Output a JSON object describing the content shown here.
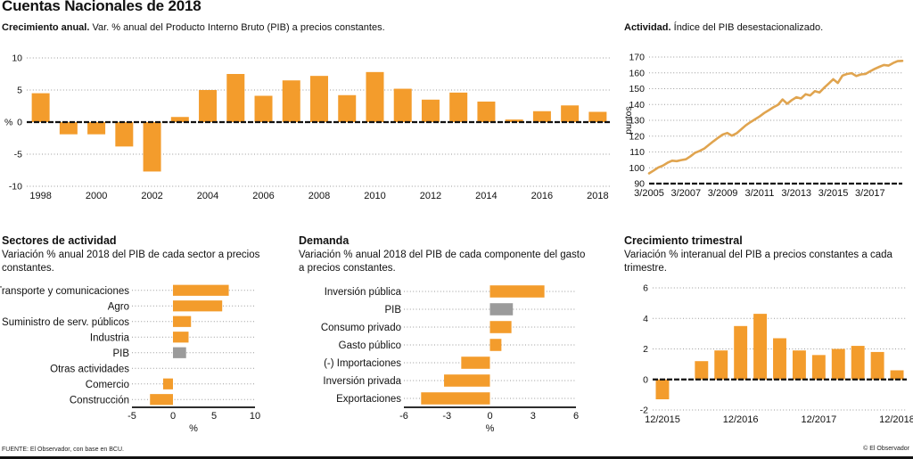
{
  "header": {
    "title": "Cuentas Nacionales de 2018"
  },
  "footer": {
    "source": "FUENTE: El Observador, con base en BCU.",
    "copyright": "© El Observador"
  },
  "colors": {
    "orange": "#F39C2C",
    "gray": "#9B9B9B",
    "line": "#E0A44F",
    "grid": "#9A9A9A",
    "axis": "#111111"
  },
  "chart_data": [
    {
      "id": "annual-growth",
      "type": "bar",
      "title_bold": "Crecimiento anual.",
      "title_rest": " Var. % anual del Producto Interno Bruto (PIB) a precios constantes.",
      "ylabel": "%",
      "categories": [
        "1998",
        "1999",
        "2000",
        "2001",
        "2002",
        "2003",
        "2004",
        "2005",
        "2006",
        "2007",
        "2008",
        "2009",
        "2010",
        "2011",
        "2012",
        "2013",
        "2014",
        "2015",
        "2016",
        "2017",
        "2018"
      ],
      "values": [
        4.5,
        -1.9,
        -1.9,
        -3.8,
        -7.7,
        0.8,
        5.0,
        7.5,
        4.1,
        6.5,
        7.2,
        4.2,
        7.8,
        5.2,
        3.5,
        4.6,
        3.2,
        0.4,
        1.7,
        2.6,
        1.6
      ],
      "ylim": [
        -10,
        10
      ],
      "yticks": [
        10,
        5,
        0,
        -5,
        -10
      ],
      "xticks": [
        "1998",
        "2000",
        "2002",
        "2004",
        "2006",
        "2008",
        "2010",
        "2012",
        "2014",
        "2016",
        "2018"
      ],
      "grid": "horizontal-dotted",
      "legend": "none"
    },
    {
      "id": "activity-index",
      "type": "line",
      "title_bold": "Actividad.",
      "title_rest": " Índice del PIB desestacionalizado.",
      "ylabel": "puntos",
      "x_unit": "trimestres",
      "values": [
        96.5,
        98.3,
        100.2,
        101.4,
        103.2,
        104.5,
        104.2,
        104.9,
        105.4,
        107.3,
        109.5,
        110.7,
        112.2,
        114.5,
        116.8,
        119.0,
        121.0,
        122.0,
        120.3,
        121.8,
        124.3,
        126.8,
        128.8,
        130.6,
        132.4,
        134.6,
        136.4,
        138.2,
        139.8,
        143.2,
        140.5,
        142.8,
        144.6,
        143.8,
        146.5,
        145.7,
        148.4,
        147.6,
        150.5,
        153.2,
        156.0,
        153.6,
        158.3,
        159.3,
        159.8,
        158.0,
        159.0,
        159.3,
        161.0,
        162.5,
        163.8,
        165.0,
        164.6,
        166.2,
        167.4,
        167.6
      ],
      "ylim": [
        90,
        170
      ],
      "yticks": [
        170,
        160,
        150,
        140,
        130,
        120,
        110,
        100,
        90
      ],
      "xticks": [
        {
          "index": 0,
          "label": "3/2005"
        },
        {
          "index": 8,
          "label": "3/2007"
        },
        {
          "index": 16,
          "label": "3/2009"
        },
        {
          "index": 24,
          "label": "3/2011"
        },
        {
          "index": 32,
          "label": "3/2013"
        },
        {
          "index": 40,
          "label": "3/2015"
        },
        {
          "index": 48,
          "label": "3/2017"
        }
      ],
      "grid": "horizontal-dotted",
      "legend": "none"
    },
    {
      "id": "sectors",
      "type": "hbar",
      "title": "Sectores de actividad",
      "subtitle": "Variación % anual 2018 del PIB de cada sector a precios constantes.",
      "xlabel": "%",
      "items": [
        {
          "label": "Transporte y comunicaciones",
          "value": 6.8,
          "color": "orange"
        },
        {
          "label": "Agro",
          "value": 6.0,
          "color": "orange"
        },
        {
          "label": "Suministro de serv. públicos",
          "value": 2.2,
          "color": "orange"
        },
        {
          "label": "Industria",
          "value": 1.9,
          "color": "orange"
        },
        {
          "label": "PIB",
          "value": 1.6,
          "color": "gray"
        },
        {
          "label": "Otras actividades",
          "value": 0,
          "color": "orange"
        },
        {
          "label": "Comercio",
          "value": -1.2,
          "color": "orange"
        },
        {
          "label": "Construcción",
          "value": -2.8,
          "color": "orange"
        }
      ],
      "xlim": [
        -5,
        10
      ],
      "xticks": [
        -5,
        0,
        5,
        10
      ],
      "grid": "row-dotted-leaders",
      "legend": "none"
    },
    {
      "id": "demand",
      "type": "hbar",
      "title": "Demanda",
      "subtitle": "Variación % anual 2018 del PIB de cada componente del gasto a precios constantes.",
      "xlabel": "%",
      "items": [
        {
          "label": "Inversión pública",
          "value": 3.8,
          "color": "orange"
        },
        {
          "label": "PIB",
          "value": 1.6,
          "color": "gray"
        },
        {
          "label": "Consumo privado",
          "value": 1.5,
          "color": "orange"
        },
        {
          "label": "Gasto público",
          "value": 0.8,
          "color": "orange"
        },
        {
          "label": "(-) Importaciones",
          "value": -2.0,
          "color": "orange"
        },
        {
          "label": "Inversión privada",
          "value": -3.2,
          "color": "orange"
        },
        {
          "label": "Exportaciones",
          "value": -4.8,
          "color": "orange"
        }
      ],
      "xlim": [
        -6,
        6
      ],
      "xticks": [
        -6,
        -3,
        0,
        3,
        6
      ],
      "grid": "row-dotted-leaders",
      "legend": "none"
    },
    {
      "id": "quarterly-growth",
      "type": "bar",
      "title": "Crecimiento trimestral",
      "subtitle": "Variación % interanual del PIB a precios constantes a cada trimestre.",
      "categories": [
        "12/2015",
        "3/2016",
        "6/2016",
        "9/2016",
        "12/2016",
        "3/2017",
        "6/2017",
        "9/2017",
        "12/2017",
        "3/2018",
        "6/2018",
        "9/2018",
        "12/2018"
      ],
      "values": [
        -1.3,
        0,
        1.2,
        1.9,
        3.5,
        4.3,
        2.7,
        1.9,
        1.6,
        2.0,
        2.2,
        1.8,
        0.6
      ],
      "ylim": [
        -2,
        6
      ],
      "yticks": [
        6,
        4,
        2,
        0,
        -2
      ],
      "xticks": [
        "12/2015",
        "12/2016",
        "12/2017",
        "12/2018"
      ],
      "grid": "horizontal-dotted",
      "legend": "none"
    }
  ]
}
